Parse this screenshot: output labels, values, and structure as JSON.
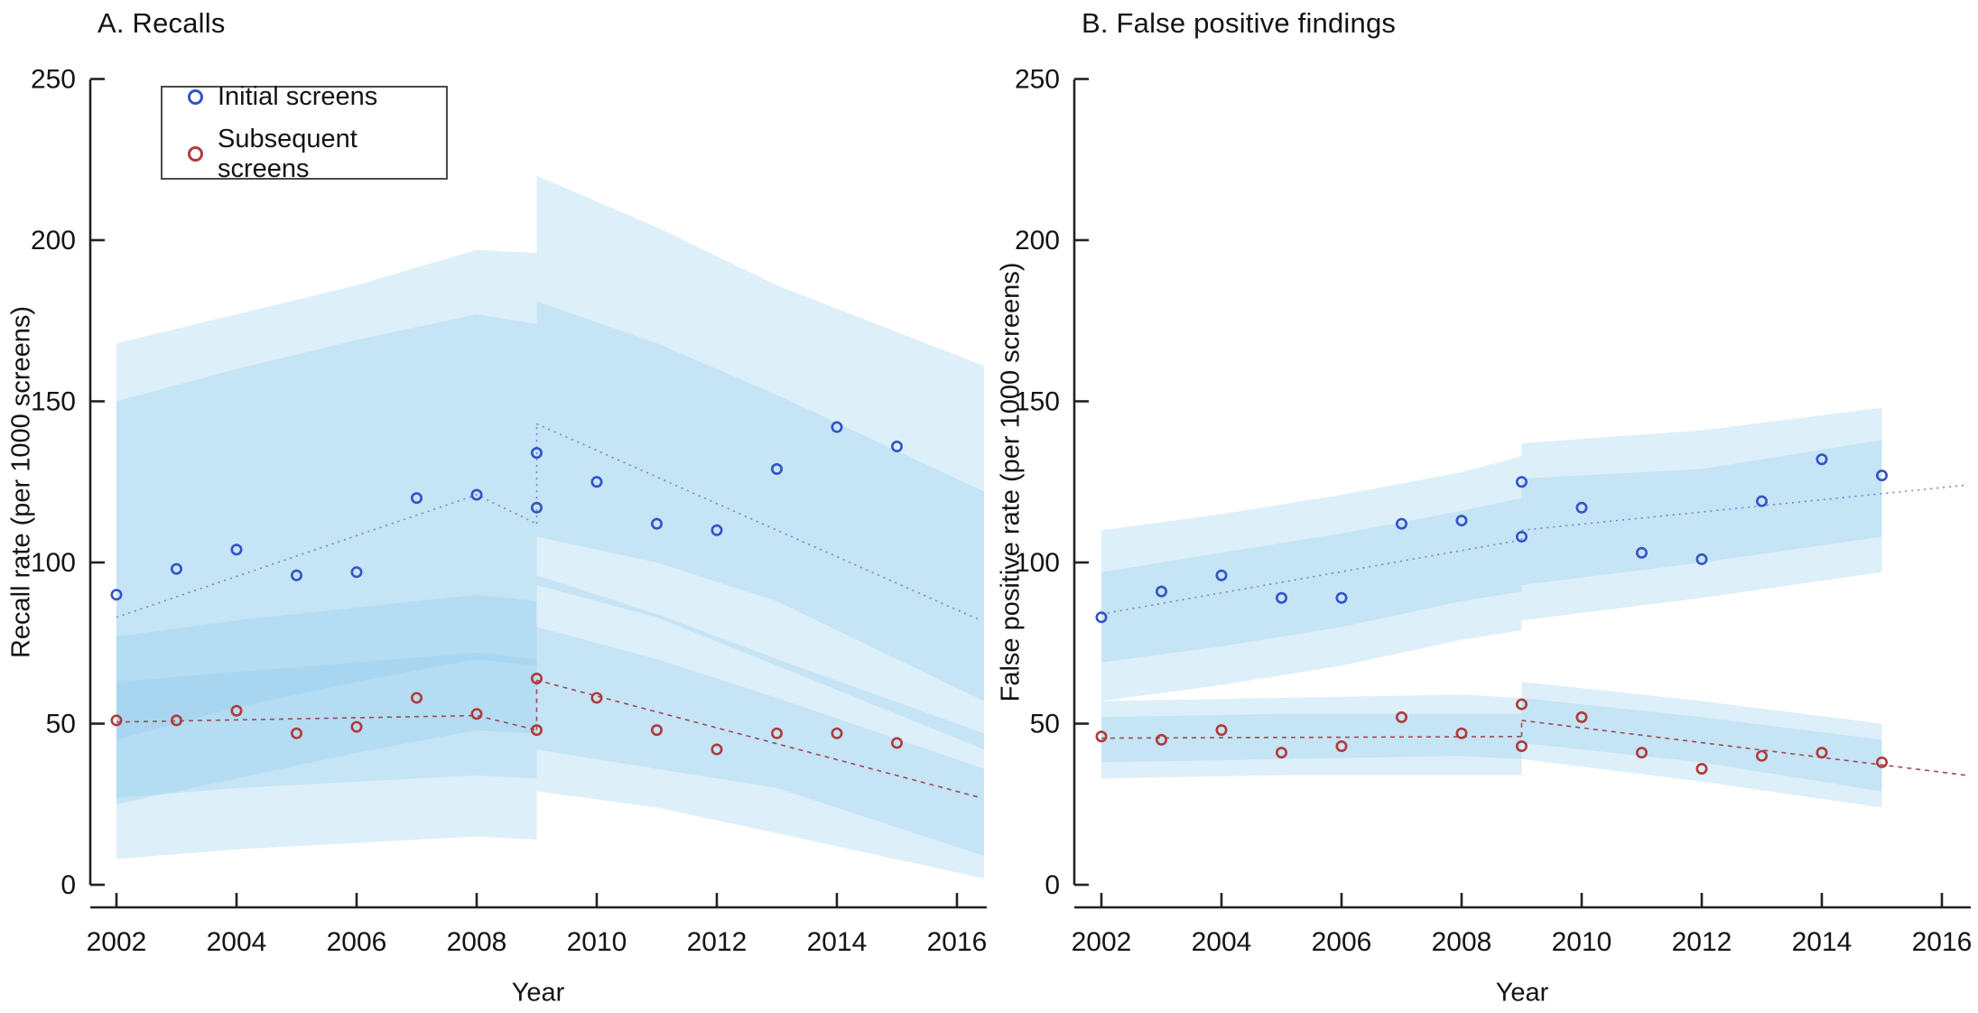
{
  "legend": {
    "items": [
      {
        "label": "Initial screens",
        "color": "#3353c3"
      },
      {
        "label": "Subsequent screens",
        "color": "#b03a3a"
      }
    ]
  },
  "colors": {
    "initial_marker": "#3353c3",
    "subsequent_marker": "#b03a3a",
    "initial_line": "#6b87d8",
    "subsequent_line": "#a04a58",
    "band_fill": "#8fcbec",
    "axis": "#222222"
  },
  "chart_data": [
    {
      "type": "scatter",
      "id": "A",
      "title": "A. Recalls",
      "xlabel": "Year",
      "ylabel": "Recall rate (per 1000 screens)",
      "ylim": [
        0,
        250
      ],
      "yticks": [
        0,
        50,
        100,
        150,
        200,
        250
      ],
      "xticks": [
        2002,
        2004,
        2006,
        2008,
        2010,
        2012,
        2014,
        2016
      ],
      "grid": false,
      "legend_position": "upper-left",
      "series": [
        {
          "name": "Initial screens",
          "points": [
            [
              2002,
              90
            ],
            [
              2003,
              98
            ],
            [
              2004,
              104
            ],
            [
              2005,
              96
            ],
            [
              2006,
              97
            ],
            [
              2007,
              120
            ],
            [
              2008,
              121
            ],
            [
              2009,
              117
            ],
            [
              2009,
              134
            ],
            [
              2010,
              125
            ],
            [
              2011,
              112
            ],
            [
              2012,
              110
            ],
            [
              2013,
              129
            ],
            [
              2014,
              142
            ],
            [
              2015,
              136
            ]
          ],
          "line_pre": [
            [
              2002,
              83
            ],
            [
              2008,
              121
            ],
            [
              2009,
              112
            ]
          ],
          "jump_2009": [
            112,
            143
          ],
          "line_post": [
            [
              2009,
              143
            ],
            [
              2016.4,
              82
            ]
          ],
          "band_pre_outer": [
            [
              2002,
              25,
              168
            ],
            [
              2004,
              33,
              177
            ],
            [
              2006,
              41,
              186
            ],
            [
              2008,
              48,
              197
            ],
            [
              2009,
              47,
              196
            ]
          ],
          "band_pre_inner": [
            [
              2002,
              45,
              150
            ],
            [
              2004,
              55,
              160
            ],
            [
              2006,
              63,
              169
            ],
            [
              2008,
              70,
              177
            ],
            [
              2009,
              68,
              174
            ]
          ],
          "band_post_outer": [
            [
              2009,
              93,
              220
            ],
            [
              2011,
              83,
              204
            ],
            [
              2013,
              68,
              186
            ],
            [
              2016.45,
              42,
              161
            ]
          ],
          "band_post_inner": [
            [
              2009,
              108,
              181
            ],
            [
              2011,
              100,
              168
            ],
            [
              2013,
              88,
              152
            ],
            [
              2016.45,
              57,
              122
            ]
          ]
        },
        {
          "name": "Subsequent screens",
          "points": [
            [
              2002,
              51
            ],
            [
              2003,
              51
            ],
            [
              2004,
              54
            ],
            [
              2005,
              47
            ],
            [
              2006,
              49
            ],
            [
              2007,
              58
            ],
            [
              2008,
              53
            ],
            [
              2009,
              48
            ],
            [
              2009,
              64
            ],
            [
              2010,
              58
            ],
            [
              2011,
              48
            ],
            [
              2012,
              42
            ],
            [
              2013,
              47
            ],
            [
              2014,
              47
            ],
            [
              2015,
              44
            ]
          ],
          "line_pre": [
            [
              2002,
              50.5
            ],
            [
              2008,
              52.5
            ],
            [
              2009,
              48
            ]
          ],
          "jump_2009": [
            48,
            63.5
          ],
          "line_post": [
            [
              2009,
              63.5
            ],
            [
              2016.4,
              27
            ]
          ],
          "band_pre_outer": [
            [
              2002,
              8,
              77
            ],
            [
              2004,
              11,
              82
            ],
            [
              2006,
              13,
              86
            ],
            [
              2008,
              15,
              90
            ],
            [
              2009,
              14,
              88
            ]
          ],
          "band_pre_inner": [
            [
              2002,
              27,
              63
            ],
            [
              2004,
              30,
              66
            ],
            [
              2006,
              32,
              69
            ],
            [
              2008,
              34,
              72
            ],
            [
              2009,
              33,
              70
            ]
          ],
          "band_post_outer": [
            [
              2009,
              29,
              96
            ],
            [
              2011,
              24,
              84
            ],
            [
              2013,
              16,
              70
            ],
            [
              2016.45,
              2,
              47
            ]
          ],
          "band_post_inner": [
            [
              2009,
              42,
              80
            ],
            [
              2011,
              36,
              70
            ],
            [
              2013,
              30,
              58
            ],
            [
              2016.45,
              9,
              36
            ]
          ]
        }
      ]
    },
    {
      "type": "scatter",
      "id": "B",
      "title": "B. False positive findings",
      "xlabel": "Year",
      "ylabel": "False positive rate (per 1000 screens)",
      "ylim": [
        0,
        250
      ],
      "yticks": [
        0,
        50,
        100,
        150,
        200,
        250
      ],
      "xticks": [
        2002,
        2004,
        2006,
        2008,
        2010,
        2012,
        2014,
        2016
      ],
      "grid": false,
      "legend_position": "none",
      "series": [
        {
          "name": "Initial screens",
          "points": [
            [
              2002,
              83
            ],
            [
              2003,
              91
            ],
            [
              2004,
              96
            ],
            [
              2005,
              89
            ],
            [
              2006,
              89
            ],
            [
              2007,
              112
            ],
            [
              2008,
              113
            ],
            [
              2009,
              108
            ],
            [
              2009,
              125
            ],
            [
              2010,
              117
            ],
            [
              2011,
              103
            ],
            [
              2012,
              101
            ],
            [
              2013,
              119
            ],
            [
              2014,
              132
            ],
            [
              2015,
              127
            ]
          ],
          "line_pre": [
            [
              2002,
              84
            ],
            [
              2009,
              107
            ]
          ],
          "jump_2009": [
            107,
            110
          ],
          "line_post": [
            [
              2009,
              110
            ],
            [
              2016.4,
              124
            ]
          ],
          "band_pre_outer": [
            [
              2002,
              57,
              110
            ],
            [
              2004,
              62,
              115
            ],
            [
              2006,
              68,
              121
            ],
            [
              2008,
              76,
              128
            ],
            [
              2009,
              79,
              133
            ]
          ],
          "band_pre_inner": [
            [
              2002,
              69,
              97
            ],
            [
              2004,
              74,
              103
            ],
            [
              2006,
              80,
              109
            ],
            [
              2008,
              88,
              116
            ],
            [
              2009,
              91,
              120
            ]
          ],
          "band_post_outer": [
            [
              2009,
              82,
              137
            ],
            [
              2012,
              89,
              141
            ],
            [
              2015,
              97,
              148
            ]
          ],
          "band_post_inner": [
            [
              2009,
              93,
              126
            ],
            [
              2012,
              100,
              129
            ],
            [
              2015,
              108,
              138
            ]
          ]
        },
        {
          "name": "Subsequent screens",
          "points": [
            [
              2002,
              46
            ],
            [
              2003,
              45
            ],
            [
              2004,
              48
            ],
            [
              2005,
              41
            ],
            [
              2006,
              43
            ],
            [
              2007,
              52
            ],
            [
              2008,
              47
            ],
            [
              2009,
              43
            ],
            [
              2009,
              56
            ],
            [
              2010,
              52
            ],
            [
              2011,
              41
            ],
            [
              2012,
              36
            ],
            [
              2013,
              40
            ],
            [
              2014,
              41
            ],
            [
              2015,
              38
            ]
          ],
          "line_pre": [
            [
              2002,
              45.5
            ],
            [
              2009,
              46
            ]
          ],
          "jump_2009": [
            46,
            51
          ],
          "line_post": [
            [
              2009,
              51
            ],
            [
              2016.4,
              34
            ]
          ],
          "band_pre_outer": [
            [
              2002,
              33,
              57
            ],
            [
              2005,
              34,
              58
            ],
            [
              2008,
              34,
              59
            ],
            [
              2009,
              34,
              58
            ]
          ],
          "band_pre_inner": [
            [
              2002,
              38,
              52
            ],
            [
              2005,
              39,
              53
            ],
            [
              2008,
              40,
              53
            ],
            [
              2009,
              39,
              53
            ]
          ],
          "band_post_outer": [
            [
              2009,
              39,
              63
            ],
            [
              2012,
              32,
              57
            ],
            [
              2015,
              24,
              50
            ]
          ],
          "band_post_inner": [
            [
              2009,
              44,
              58
            ],
            [
              2012,
              38,
              52
            ],
            [
              2015,
              29,
              45
            ]
          ]
        }
      ]
    }
  ]
}
